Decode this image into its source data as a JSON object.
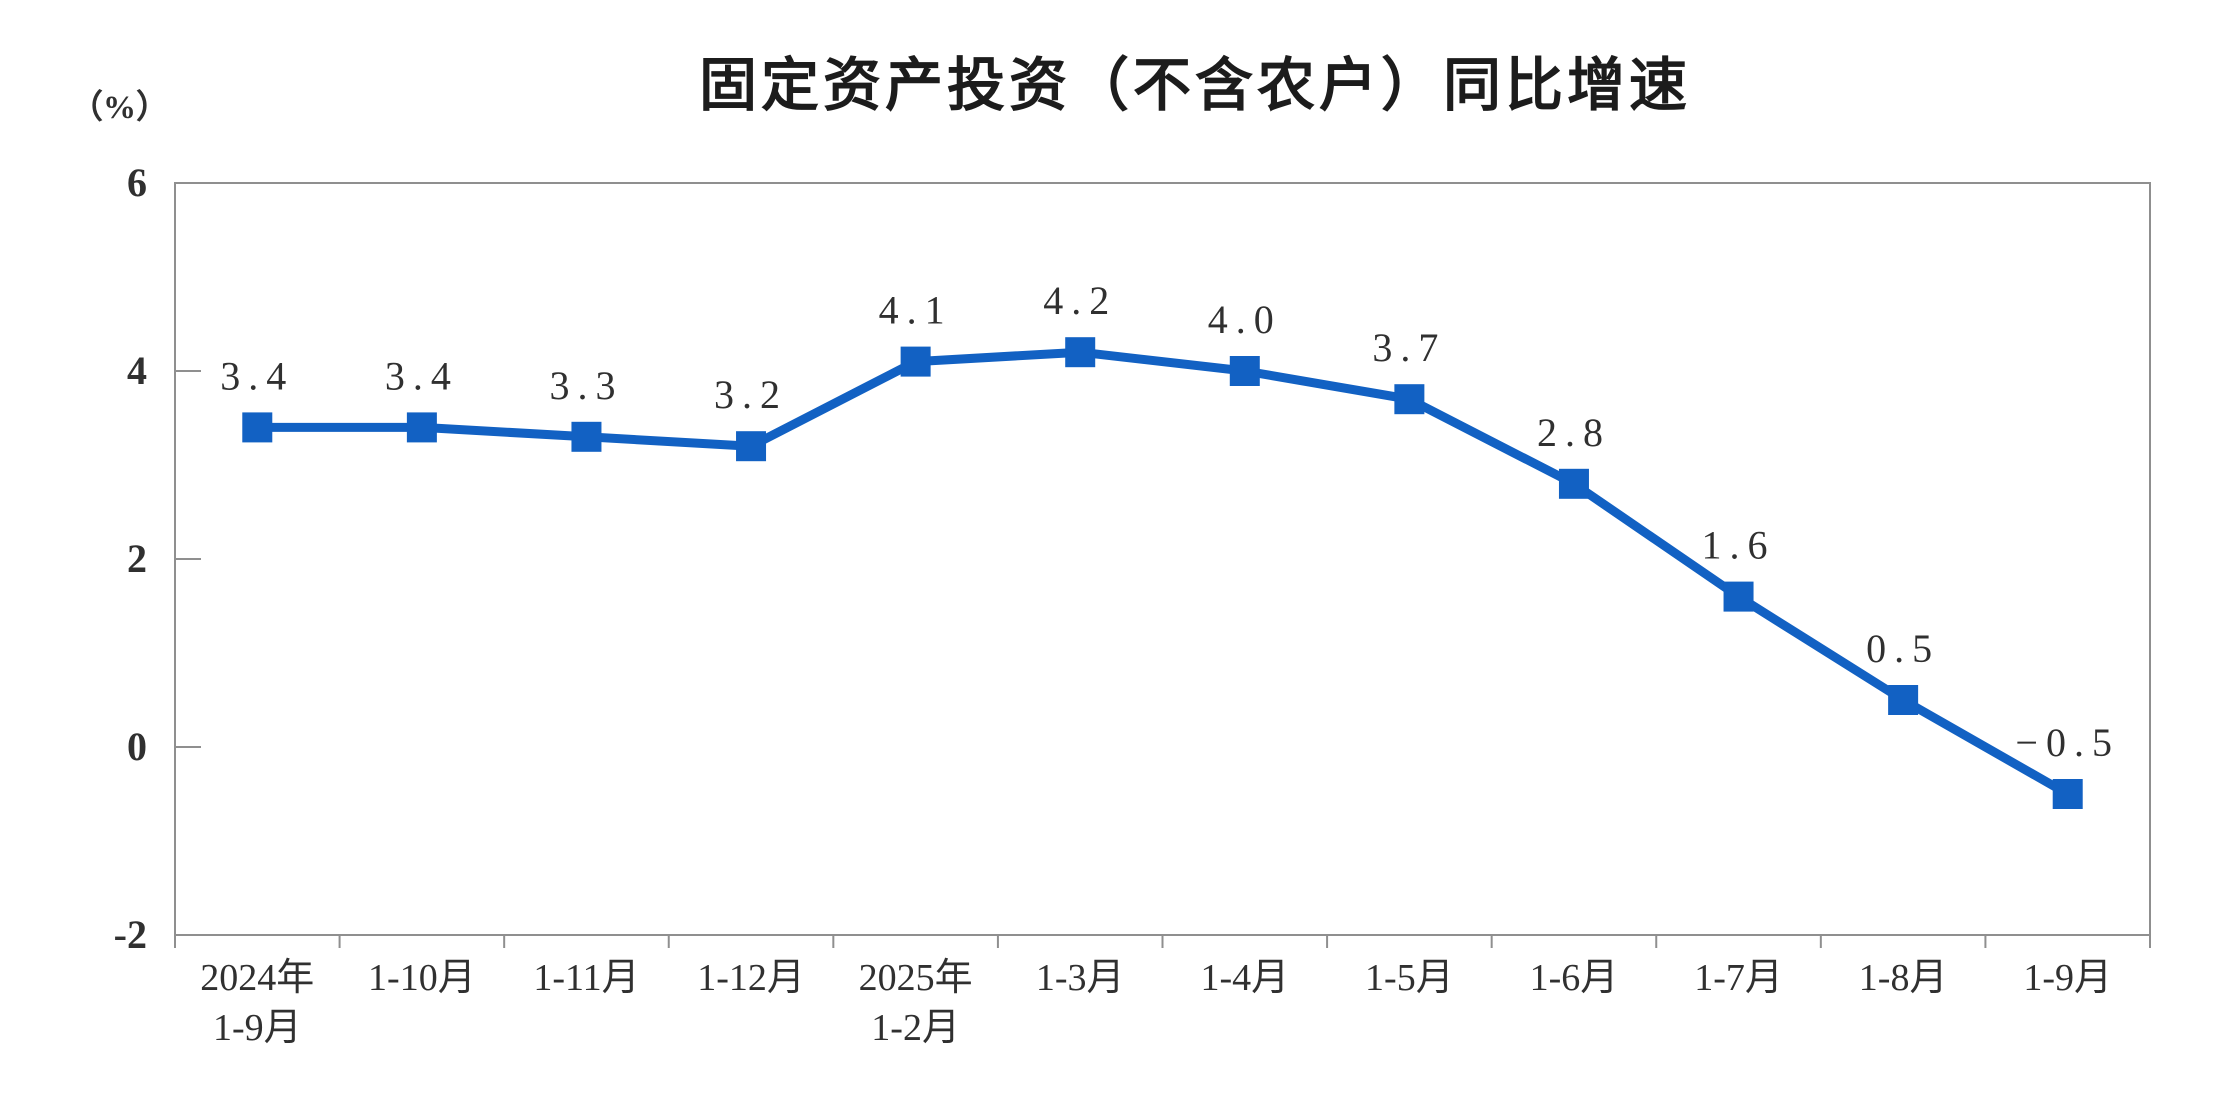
{
  "chart_data": {
    "type": "line",
    "title": "固定资产投资（不含农户）同比增速",
    "unit_label": "（%）",
    "xlabel": "",
    "ylabel": "（%）",
    "categories": [
      "2024年\n1-9月",
      "1-10月",
      "1-11月",
      "1-12月",
      "2025年\n1-2月",
      "1-3月",
      "1-4月",
      "1-5月",
      "1-6月",
      "1-7月",
      "1-8月",
      "1-9月"
    ],
    "series": [
      {
        "name": "固定资产投资（不含农户）同比增速",
        "values": [
          3.4,
          3.4,
          3.3,
          3.2,
          4.1,
          4.2,
          4.0,
          3.7,
          2.8,
          1.6,
          0.5,
          -0.5
        ],
        "point_labels": [
          "3.4",
          "3.4",
          "3.3",
          "3.2",
          "4.1",
          "4.2",
          "4.0",
          "3.7",
          "2.8",
          "1.6",
          "0.5",
          "−0.5"
        ]
      }
    ],
    "ylim": [
      -2,
      6
    ],
    "yticks": [
      6,
      4,
      2,
      0,
      -2
    ],
    "ytick_labels": [
      "6",
      "4",
      "2",
      "0",
      "-2"
    ],
    "grid": false,
    "legend_position": "none",
    "marker_style": "square",
    "colors": {
      "line": "#1261c3",
      "marker": "#1261c3",
      "axis": "#8f8f8f",
      "tick_text": "#303030",
      "title_text": "#1c1c1c",
      "background": "#ffffff"
    }
  }
}
